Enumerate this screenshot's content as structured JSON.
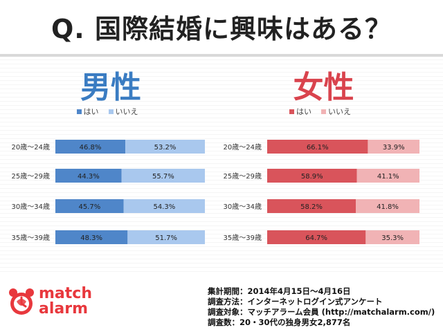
{
  "title": "Q. 国際結婚に興味はある？",
  "chart_data": [
    {
      "type": "bar",
      "title": "男性",
      "categories": [
        "20歳～24歳",
        "25歳～29歳",
        "30歳～34歳",
        "35歳～39歳"
      ],
      "series": [
        {
          "name": "はい",
          "values": [
            46.8,
            44.3,
            45.7,
            48.3
          ],
          "labels": [
            "46.8%",
            "44.3%",
            "45.7%",
            "48.3%"
          ]
        },
        {
          "name": "いいえ",
          "values": [
            53.2,
            55.7,
            54.3,
            51.7
          ],
          "labels": [
            "53.2%",
            "55.7%",
            "54.3%",
            "51.7%"
          ]
        }
      ],
      "stacked": true,
      "orientation": "horizontal",
      "xlim": [
        0,
        100
      ],
      "legend": "top",
      "colors": {
        "title": "#3a7cc2",
        "yes": "#4f86c9",
        "no": "#a9c8ee"
      }
    },
    {
      "type": "bar",
      "title": "女性",
      "categories": [
        "20歳～24歳",
        "25歳～29歳",
        "30歳～34歳",
        "35歳～39歳"
      ],
      "series": [
        {
          "name": "はい",
          "values": [
            66.1,
            58.9,
            58.2,
            64.7
          ],
          "labels": [
            "66.1%",
            "58.9%",
            "58.2%",
            "64.7%"
          ]
        },
        {
          "name": "いいえ",
          "values": [
            33.9,
            41.1,
            41.8,
            35.3
          ],
          "labels": [
            "33.9%",
            "41.1%",
            "41.8%",
            "35.3%"
          ]
        }
      ],
      "stacked": true,
      "orientation": "horizontal",
      "xlim": [
        0,
        100
      ],
      "legend": "top",
      "colors": {
        "title": "#d9434d",
        "yes": "#d9545b",
        "no": "#f1b3b5"
      }
    }
  ],
  "logo": {
    "line1": "match",
    "line2": "alarm"
  },
  "survey": [
    "集計期間：2014年4月15日～4月16日",
    "調査方法：インターネットログイン式アンケート",
    "調査対象：マッチアラーム会員 (http://matchalarm.com/)",
    "調査数：20・30代の独身男女2,877名"
  ]
}
